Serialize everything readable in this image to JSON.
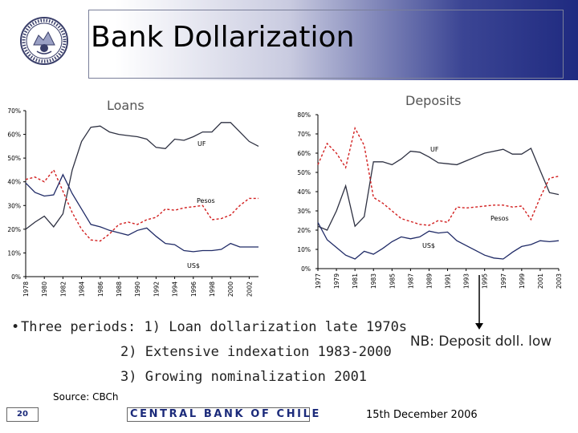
{
  "slide": {
    "title": "Bank Dollarization",
    "bullet_marker": "•",
    "bullets": [
      "Three periods: 1) Loan dollarization late 1970s",
      "2) Extensive indexation 1983-2000",
      "3) Growing nominalization 2001"
    ],
    "note": "NB: Deposit doll. low",
    "source": "Source: CBCh",
    "footer": "CENTRAL BANK OF CHILE",
    "date": "15th December 2006",
    "page_number": "20"
  },
  "colors": {
    "uf": "#2e3142",
    "pesos": "#d21f1f",
    "usd": "#1f2a66",
    "header_dark": "#1f2a80",
    "footer_text": "#1b2a7a"
  },
  "chart_data": [
    {
      "type": "line",
      "title": "Loans",
      "xlabel": "",
      "ylabel": "",
      "ylim": [
        0,
        70
      ],
      "yticks": [
        "0%",
        "10%",
        "20%",
        "30%",
        "40%",
        "50%",
        "60%",
        "70%"
      ],
      "xtick_labels": [
        "1978",
        "1980",
        "1982",
        "1984",
        "1986",
        "1988",
        "1990",
        "1992",
        "1994",
        "1996",
        "1998",
        "2000",
        "2002"
      ],
      "x": [
        1978,
        1979,
        1980,
        1981,
        1982,
        1983,
        1984,
        1985,
        1986,
        1987,
        1988,
        1989,
        1990,
        1991,
        1992,
        1993,
        1994,
        1995,
        1996,
        1997,
        1998,
        1999,
        2000,
        2001,
        2002,
        2003
      ],
      "series": [
        {
          "name": "UF",
          "style": "solid",
          "values": [
            20,
            23,
            25.5,
            21,
            26.5,
            45,
            57,
            63,
            63.5,
            61,
            60,
            59.5,
            59,
            58,
            54.5,
            54,
            58,
            57.5,
            59,
            61,
            61,
            65,
            65,
            61,
            57,
            55
          ]
        },
        {
          "name": "Pesos",
          "style": "dashed",
          "values": [
            41,
            42,
            40,
            45,
            36,
            27,
            20,
            15.5,
            15,
            18,
            22,
            23,
            22,
            24,
            25,
            28.5,
            28,
            29,
            29.5,
            30,
            24,
            24.5,
            26,
            30,
            33,
            33
          ]
        },
        {
          "name": "US$",
          "style": "solid",
          "values": [
            39.5,
            35.5,
            34,
            34.5,
            43,
            35,
            28.5,
            22,
            21,
            19.5,
            18.5,
            17.5,
            19.5,
            20.5,
            17,
            14,
            13.5,
            11,
            10.5,
            11,
            11,
            11.5,
            14,
            12.5,
            12.5,
            12.5
          ]
        }
      ]
    },
    {
      "type": "line",
      "title": "Deposits",
      "xlabel": "",
      "ylabel": "",
      "ylim": [
        0,
        80
      ],
      "yticks": [
        "0%",
        "10%",
        "20%",
        "30%",
        "40%",
        "50%",
        "60%",
        "70%",
        "80%"
      ],
      "xtick_labels": [
        "1977",
        "1979",
        "1981",
        "1983",
        "1985",
        "1987",
        "1989",
        "1991",
        "1993",
        "1995",
        "1997",
        "1999",
        "2001",
        "2003"
      ],
      "x": [
        1977,
        1978,
        1979,
        1980,
        1981,
        1982,
        1983,
        1984,
        1985,
        1986,
        1987,
        1988,
        1989,
        1990,
        1991,
        1992,
        1993,
        1994,
        1995,
        1996,
        1997,
        1998,
        1999,
        2000,
        2001,
        2002,
        2003
      ],
      "series": [
        {
          "name": "UF",
          "style": "solid",
          "values": [
            22,
            20,
            30,
            43,
            22,
            27,
            55.5,
            55.5,
            54,
            57,
            61,
            60.5,
            58,
            55,
            54.5,
            54,
            56,
            58,
            60,
            61,
            62,
            59.5,
            59.5,
            62.5,
            51,
            39.5,
            38.5
          ]
        },
        {
          "name": "Pesos",
          "style": "dashed",
          "values": [
            54,
            65,
            60,
            52.5,
            73,
            64,
            37,
            34,
            30,
            26,
            24.5,
            23,
            22.5,
            25,
            24,
            32,
            31.5,
            32,
            32.5,
            33,
            33,
            32,
            32.5,
            25.5,
            37,
            47,
            48
          ]
        },
        {
          "name": "US$",
          "style": "solid",
          "values": [
            24,
            15,
            11,
            7,
            5,
            9,
            7.5,
            10.5,
            14,
            16.5,
            15.5,
            16.5,
            19.5,
            18.5,
            19,
            14.5,
            12,
            9.5,
            7,
            5.5,
            5,
            8.5,
            11.5,
            12.5,
            14.5,
            14,
            14.5
          ]
        }
      ]
    }
  ]
}
